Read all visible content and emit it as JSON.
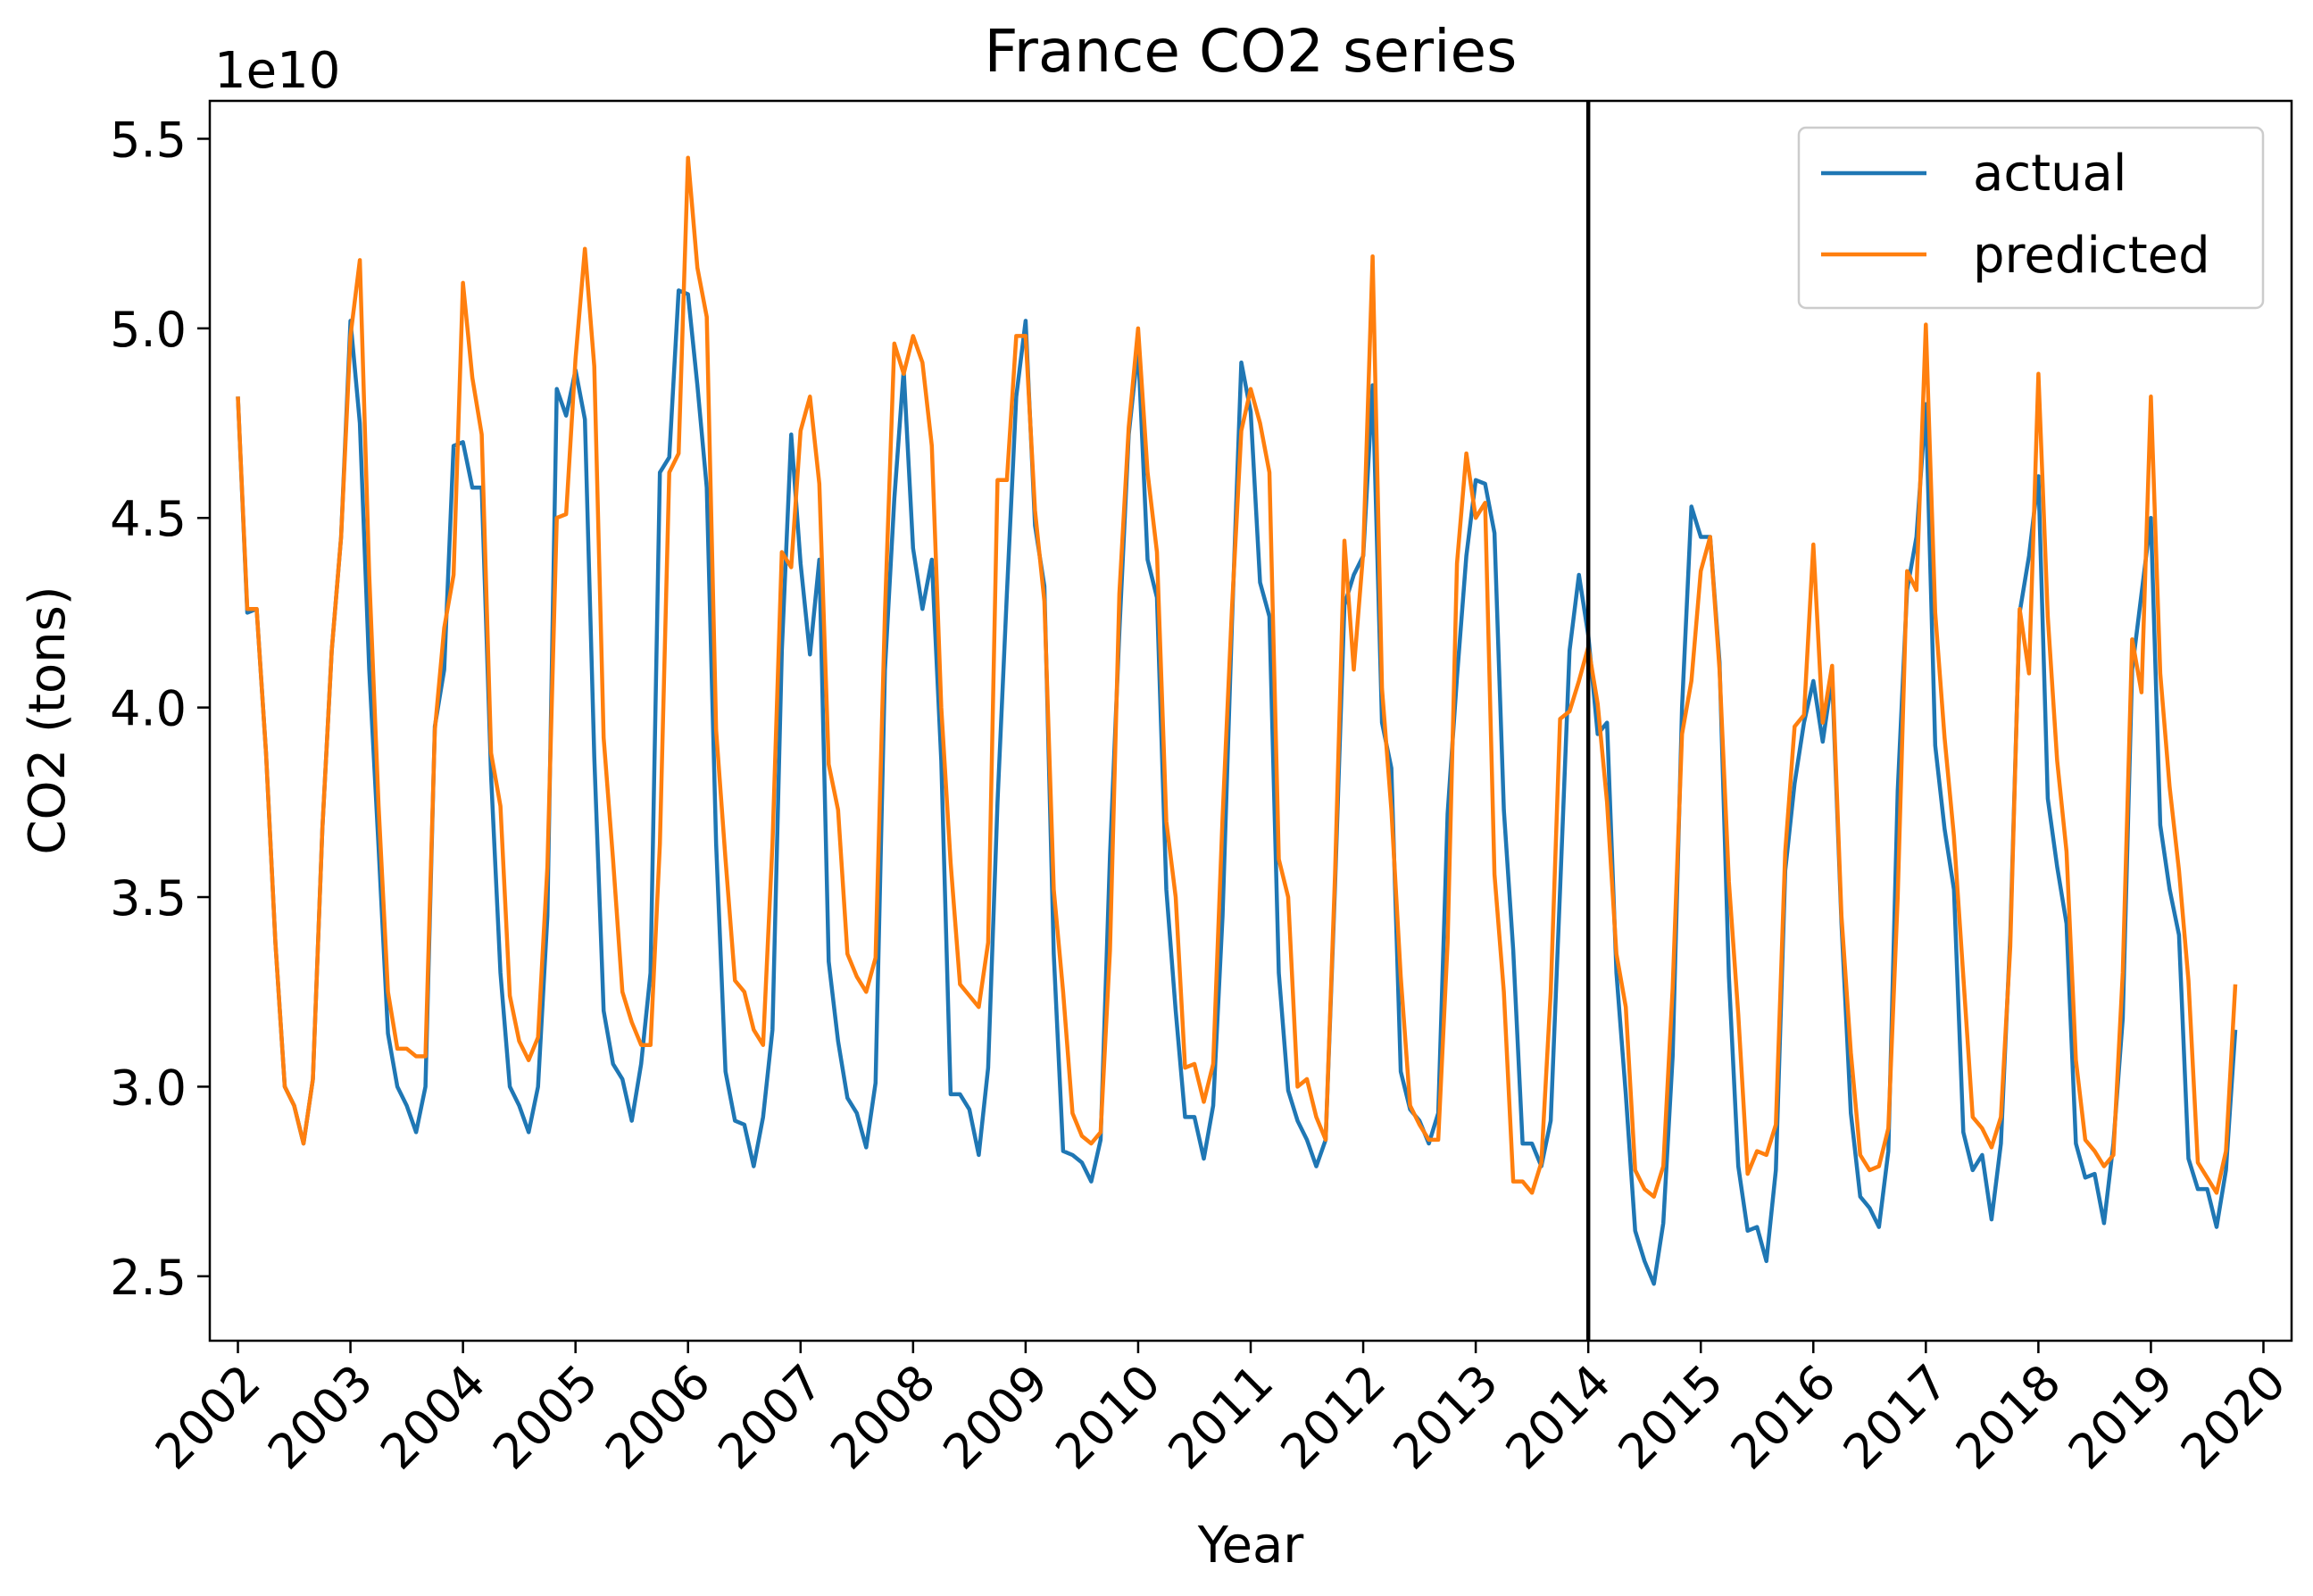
{
  "chart_data": {
    "type": "line",
    "title": "France  CO2 series",
    "xlabel": "Year",
    "ylabel": "CO2 (tons)",
    "y_offset_text": "1e10",
    "y_scale_factor": 10000000000.0,
    "xlim": [
      2001.75,
      2020.25
    ],
    "ylim": [
      2.33,
      5.6
    ],
    "x_ticks": [
      "2002",
      "2003",
      "2004",
      "2005",
      "2006",
      "2007",
      "2008",
      "2009",
      "2010",
      "2011",
      "2012",
      "2013",
      "2014",
      "2015",
      "2016",
      "2017",
      "2018",
      "2019",
      "2020"
    ],
    "y_ticks": [
      "2.5",
      "3.0",
      "3.5",
      "4.0",
      "4.5",
      "5.0",
      "5.5"
    ],
    "split_line_x": 2014.0,
    "legend_position": "upper right",
    "grid": false,
    "colors": {
      "actual": "#1f77b4",
      "predicted": "#ff7f0e",
      "split_line": "#000000"
    },
    "series": [
      {
        "name": "actual",
        "x_start": 2002.0,
        "x_step_months": 1,
        "values": [
          4.82,
          4.25,
          4.26,
          3.88,
          3.38,
          3.0,
          2.95,
          2.85,
          3.02,
          3.68,
          4.15,
          4.45,
          5.02,
          4.75,
          4.1,
          3.63,
          3.14,
          3.0,
          2.95,
          2.88,
          3.0,
          3.95,
          4.1,
          4.69,
          4.7,
          4.58,
          4.58,
          3.82,
          3.3,
          3.0,
          2.95,
          2.88,
          3.0,
          3.45,
          4.84,
          4.77,
          4.89,
          4.76,
          3.87,
          3.2,
          3.06,
          3.02,
          2.91,
          3.06,
          3.3,
          4.62,
          4.66,
          5.1,
          5.09,
          4.85,
          4.58,
          3.64,
          3.04,
          2.91,
          2.9,
          2.79,
          2.92,
          3.15,
          4.15,
          4.72,
          4.38,
          4.14,
          4.39,
          3.33,
          3.12,
          2.97,
          2.93,
          2.84,
          3.01,
          4.1,
          4.55,
          4.89,
          4.42,
          4.26,
          4.39,
          3.86,
          2.98,
          2.98,
          2.94,
          2.82,
          3.05,
          3.75,
          4.3,
          4.82,
          5.02,
          4.48,
          4.32,
          3.35,
          2.83,
          2.82,
          2.8,
          2.75,
          2.86,
          3.61,
          4.2,
          4.72,
          4.95,
          4.39,
          4.29,
          3.52,
          3.2,
          2.92,
          2.92,
          2.81,
          2.95,
          3.45,
          4.22,
          4.91,
          4.78,
          4.33,
          4.24,
          3.3,
          2.99,
          2.91,
          2.86,
          2.79,
          2.86,
          3.53,
          4.27,
          4.35,
          4.4,
          4.85,
          3.96,
          3.84,
          3.04,
          2.94,
          2.91,
          2.85,
          2.93,
          3.72,
          4.08,
          4.4,
          4.6,
          4.59,
          4.46,
          3.73,
          3.36,
          2.85,
          2.85,
          2.79,
          2.91,
          3.52,
          4.15,
          4.35,
          4.19,
          3.93,
          3.96,
          3.3,
          2.98,
          2.62,
          2.54,
          2.48,
          2.64,
          3.08,
          4.0,
          4.53,
          4.45,
          4.45,
          4.12,
          3.29,
          2.79,
          2.62,
          2.63,
          2.54,
          2.78,
          3.57,
          3.8,
          3.96,
          4.07,
          3.91,
          4.08,
          3.43,
          2.93,
          2.71,
          2.68,
          2.63,
          2.83,
          3.78,
          4.31,
          4.45,
          4.8,
          3.9,
          3.68,
          3.52,
          2.88,
          2.78,
          2.82,
          2.65,
          2.85,
          3.4,
          4.25,
          4.4,
          4.61,
          3.76,
          3.58,
          3.43,
          2.85,
          2.76,
          2.77,
          2.64,
          2.85,
          3.18,
          4.1,
          4.3,
          4.5,
          3.69,
          3.52,
          3.4,
          2.81,
          2.73,
          2.73,
          2.63,
          2.78,
          3.15
        ]
      },
      {
        "name": "predicted",
        "x_start": 2002.0,
        "x_step_months": 1,
        "values": [
          4.82,
          4.26,
          4.26,
          3.88,
          3.38,
          3.0,
          2.95,
          2.85,
          3.02,
          3.68,
          4.15,
          4.45,
          4.98,
          5.18,
          4.35,
          3.74,
          3.25,
          3.1,
          3.1,
          3.08,
          3.08,
          3.94,
          4.21,
          4.35,
          5.12,
          4.87,
          4.72,
          3.88,
          3.74,
          3.24,
          3.12,
          3.07,
          3.13,
          3.58,
          4.5,
          4.51,
          4.92,
          5.21,
          4.9,
          3.92,
          3.6,
          3.25,
          3.17,
          3.11,
          3.11,
          3.64,
          4.62,
          4.67,
          5.45,
          5.16,
          5.03,
          3.94,
          3.6,
          3.28,
          3.25,
          3.15,
          3.11,
          3.64,
          4.41,
          4.37,
          4.73,
          4.82,
          4.59,
          3.85,
          3.73,
          3.35,
          3.29,
          3.25,
          3.34,
          4.25,
          4.96,
          4.88,
          4.98,
          4.91,
          4.69,
          4.0,
          3.59,
          3.27,
          3.24,
          3.21,
          3.38,
          4.6,
          4.6,
          4.98,
          4.98,
          4.52,
          4.28,
          3.52,
          3.25,
          2.93,
          2.87,
          2.85,
          2.88,
          3.36,
          4.3,
          4.74,
          5.0,
          4.62,
          4.41,
          3.7,
          3.5,
          3.05,
          3.06,
          2.96,
          3.06,
          3.71,
          4.26,
          4.73,
          4.84,
          4.75,
          4.62,
          3.6,
          3.5,
          3.0,
          3.02,
          2.92,
          2.86,
          3.56,
          4.44,
          4.1,
          4.41,
          5.19,
          4.05,
          3.73,
          3.29,
          2.95,
          2.9,
          2.86,
          2.86,
          3.38,
          4.38,
          4.67,
          4.5,
          4.54,
          3.56,
          3.25,
          2.75,
          2.75,
          2.72,
          2.8,
          3.25,
          3.97,
          3.99,
          4.07,
          4.16,
          4.01,
          3.75,
          3.35,
          3.21,
          2.78,
          2.73,
          2.71,
          2.79,
          3.26,
          3.93,
          4.07,
          4.36,
          4.45,
          4.1,
          3.54,
          3.19,
          2.77,
          2.83,
          2.82,
          2.9,
          3.62,
          3.95,
          3.98,
          4.43,
          3.96,
          4.11,
          3.45,
          3.09,
          2.82,
          2.78,
          2.79,
          2.89,
          3.5,
          4.36,
          4.31,
          5.01,
          4.25,
          3.92,
          3.66,
          3.29,
          2.92,
          2.89,
          2.84,
          2.92,
          3.37,
          4.26,
          4.09,
          4.88,
          4.24,
          3.86,
          3.62,
          3.07,
          2.86,
          2.83,
          2.79,
          2.82,
          3.3,
          4.18,
          4.04,
          4.82,
          4.09,
          3.79,
          3.57,
          3.28,
          2.8,
          2.76,
          2.72,
          2.83,
          3.27
        ]
      }
    ]
  }
}
